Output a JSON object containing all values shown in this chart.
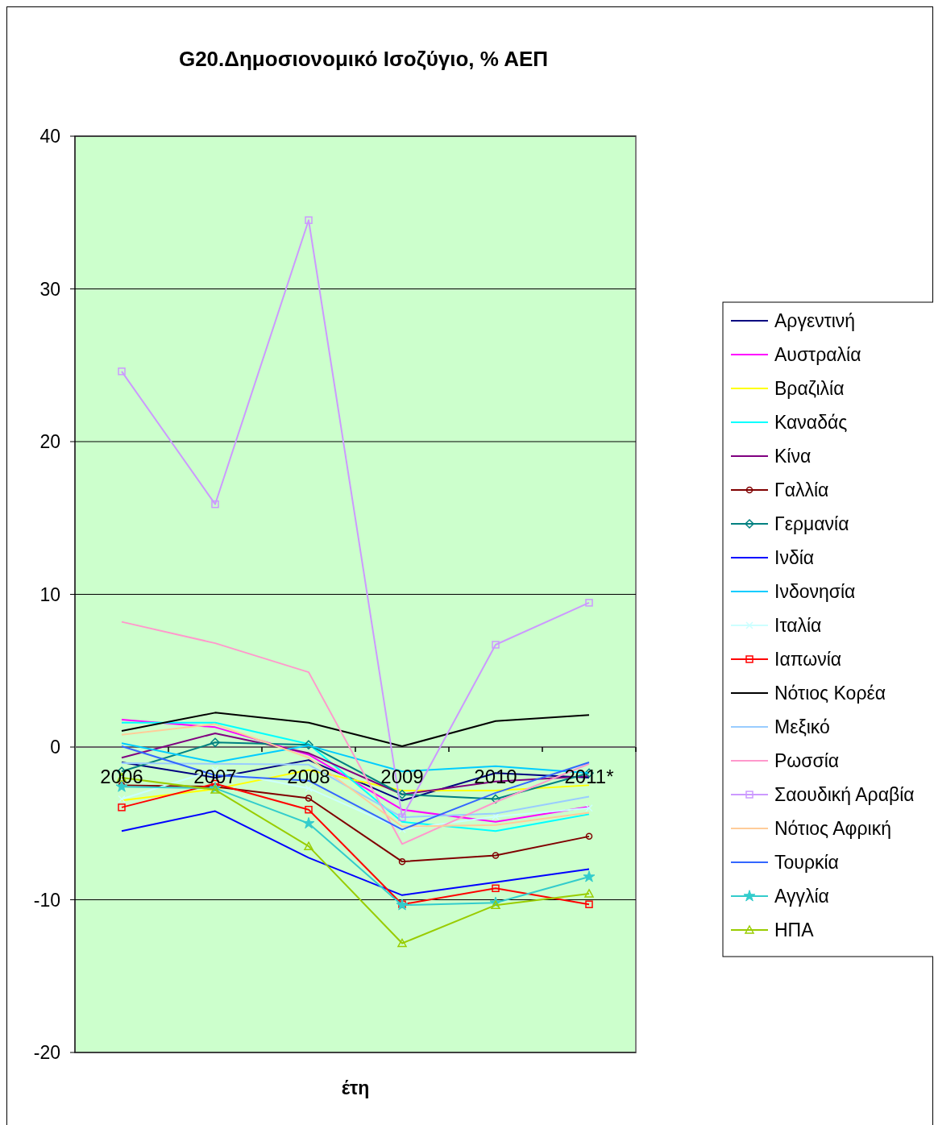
{
  "chart_data": {
    "type": "line",
    "title": "G20.Δημοσιονομικό Ισοζύγιο, % ΑΕΠ",
    "xlabel": "έτη",
    "categories": [
      "2006",
      "2007",
      "2008",
      "2009",
      "2010",
      "2011*"
    ],
    "ylim": [
      -20,
      40
    ],
    "yticks": [
      -20,
      -10,
      0,
      10,
      20,
      30,
      40
    ],
    "grid": "y",
    "legend": "right",
    "series": [
      {
        "name": "Αργεντινή",
        "color": "#000080",
        "values": [
          -1.0,
          -2.0,
          -0.85,
          -3.5,
          -1.7,
          -2.0
        ]
      },
      {
        "name": "Αυστραλία",
        "color": "#ff00ff",
        "values": [
          1.8,
          1.3,
          -0.5,
          -4.1,
          -4.9,
          -3.9
        ]
      },
      {
        "name": "Βραζιλία",
        "color": "#ffff00",
        "values": [
          -3.5,
          -2.75,
          -1.5,
          -2.85,
          -2.85,
          -2.5
        ]
      },
      {
        "name": "Καναδάς",
        "color": "#00ffff",
        "values": [
          1.6,
          1.6,
          0.2,
          -4.9,
          -5.5,
          -4.4
        ]
      },
      {
        "name": "Κίνα",
        "color": "#800080",
        "values": [
          -0.7,
          0.9,
          -0.4,
          -3.1,
          -2.25,
          -1.9
        ]
      },
      {
        "name": "Γαλλία",
        "color": "#800000",
        "marker": "circle",
        "values": [
          -2.5,
          -2.6,
          -3.35,
          -7.5,
          -7.1,
          -5.85
        ]
      },
      {
        "name": "Γερμανία",
        "color": "#008080",
        "marker": "diamond",
        "values": [
          -1.6,
          0.3,
          0.15,
          -3.1,
          -3.4,
          -1.7
        ]
      },
      {
        "name": "Ινδία",
        "color": "#0000ff",
        "values": [
          -5.5,
          -4.2,
          -7.25,
          -9.7,
          -8.85,
          -8.0
        ]
      },
      {
        "name": "Ινδονησία",
        "color": "#00ccff",
        "values": [
          0.25,
          -1.0,
          0.1,
          -1.6,
          -1.25,
          -1.7
        ]
      },
      {
        "name": "Ιταλία",
        "color": "#ccffff",
        "marker": "cross",
        "values": [
          -3.4,
          -1.5,
          -2.7,
          -5.4,
          -4.55,
          -4.0
        ]
      },
      {
        "name": "Ιαπωνία",
        "color": "#ff0000",
        "marker": "square",
        "values": [
          -3.95,
          -2.4,
          -4.1,
          -10.3,
          -9.25,
          -10.3
        ]
      },
      {
        "name": "Νότιος Κορέα",
        "color": "#000000",
        "values": [
          1.05,
          2.25,
          1.6,
          0.05,
          1.7,
          2.1
        ]
      },
      {
        "name": "Μεξικό",
        "color": "#99ccff",
        "values": [
          -1.05,
          -1.1,
          -1.15,
          -4.6,
          -4.35,
          -3.25
        ]
      },
      {
        "name": "Ρωσσία",
        "color": "#ff99cc",
        "values": [
          8.2,
          6.8,
          4.9,
          -6.35,
          -3.6,
          -1.1
        ]
      },
      {
        "name": "Σαουδική Αραβία",
        "color": "#cc99ff",
        "marker": "square",
        "values": [
          24.6,
          15.9,
          34.5,
          -4.6,
          6.7,
          9.45
        ]
      },
      {
        "name": "Νότιος Αφρική",
        "color": "#ffcc99",
        "values": [
          0.8,
          1.5,
          -0.7,
          -5.2,
          -5.1,
          -4.3
        ]
      },
      {
        "name": "Τουρκία",
        "color": "#3366ff",
        "values": [
          0.05,
          -1.85,
          -2.2,
          -5.4,
          -3.0,
          -1.0
        ]
      },
      {
        "name": "Αγγλία",
        "color": "#33cccc",
        "marker": "star",
        "values": [
          -2.6,
          -2.7,
          -5.0,
          -10.35,
          -10.2,
          -8.5
        ]
      },
      {
        "name": "ΗΠΑ",
        "color": "#99cc00",
        "marker": "triangle",
        "values": [
          -2.0,
          -2.8,
          -6.5,
          -12.85,
          -10.35,
          -9.6
        ]
      }
    ]
  }
}
